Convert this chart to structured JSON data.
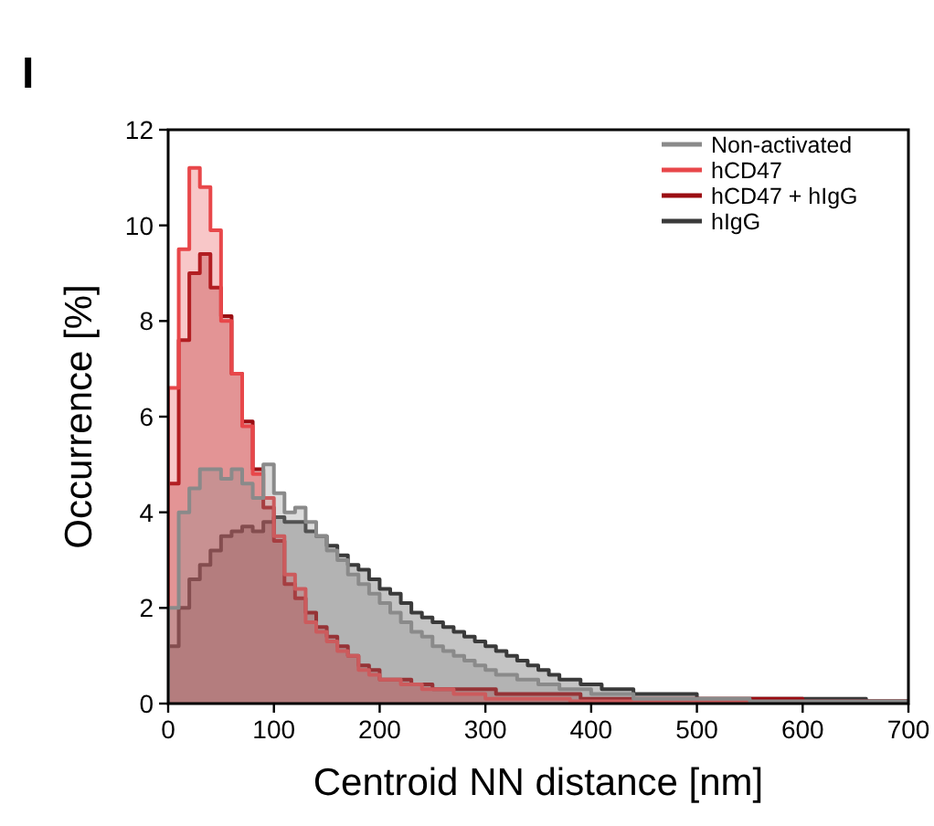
{
  "chart_data": {
    "type": "histogram",
    "title": "I",
    "xlabel": "Centroid NN distance [nm]",
    "ylabel": "Occurrence [%]",
    "bins": [
      0,
      10,
      20,
      30,
      40,
      50,
      60,
      70,
      80,
      90,
      100,
      110,
      120,
      130,
      140,
      150,
      160,
      170,
      180,
      190,
      200,
      210,
      220,
      230,
      240,
      250,
      260,
      270,
      280,
      290,
      300,
      310,
      320,
      330,
      340,
      350,
      360,
      370,
      380,
      390,
      400,
      410,
      420,
      430,
      440,
      450,
      460,
      470,
      480,
      490,
      500,
      510,
      520,
      530,
      540,
      550,
      560,
      570,
      580,
      590,
      600,
      610,
      620,
      630,
      640,
      650,
      660,
      670,
      680,
      690,
      700
    ],
    "series": [
      {
        "name": "Non-activated",
        "color": "#8a8a8a",
        "values": [
          2.0,
          4.0,
          4.5,
          4.9,
          4.9,
          4.7,
          4.9,
          4.6,
          4.3,
          5.0,
          4.4,
          4.0,
          4.1,
          3.8,
          3.5,
          3.2,
          3.0,
          2.7,
          2.5,
          2.3,
          2.1,
          1.9,
          1.7,
          1.5,
          1.4,
          1.2,
          1.1,
          1.0,
          0.9,
          0.8,
          0.7,
          0.6,
          0.6,
          0.5,
          0.5,
          0.4,
          0.4,
          0.3,
          0.3,
          0.3,
          0.2,
          0.2,
          0.2,
          0.2,
          0.1,
          0.1,
          0.1,
          0.1,
          0.1,
          0.1,
          0.1,
          0.1,
          0.1,
          0.1,
          0.1,
          0.05,
          0.05,
          0.05,
          0.05,
          0.05,
          0.05,
          0.05,
          0.05,
          0.05,
          0.05,
          0.05,
          0.05,
          0.05,
          0.05,
          0.05
        ]
      },
      {
        "name": "hCD47",
        "color": "#e8474a",
        "values": [
          6.6,
          9.5,
          11.2,
          10.8,
          9.9,
          8.0,
          6.9,
          5.8,
          4.8,
          4.3,
          3.5,
          2.7,
          2.4,
          1.7,
          1.5,
          1.3,
          1.1,
          1.0,
          0.7,
          0.6,
          0.5,
          0.5,
          0.4,
          0.4,
          0.3,
          0.3,
          0.3,
          0.2,
          0.2,
          0.2,
          0.1,
          0.1,
          0.1,
          0.1,
          0.1,
          0.1,
          0.1,
          0.1,
          0.05,
          0.05,
          0.05,
          0.05,
          0.05,
          0.05,
          0.05,
          0.05,
          0.05,
          0.05,
          0.05,
          0.05,
          0.05,
          0.05,
          0.05,
          0.05,
          0.05,
          0,
          0,
          0,
          0,
          0,
          0,
          0,
          0,
          0,
          0,
          0,
          0,
          0,
          0,
          0
        ]
      },
      {
        "name": "hCD47 + hIgG",
        "color": "#9b0d12",
        "values": [
          4.6,
          7.6,
          9.0,
          9.4,
          8.7,
          8.1,
          6.9,
          5.9,
          4.9,
          4.1,
          3.4,
          2.5,
          2.2,
          1.9,
          1.6,
          1.4,
          1.2,
          1.0,
          0.8,
          0.7,
          0.5,
          0.5,
          0.5,
          0.4,
          0.4,
          0.3,
          0.3,
          0.3,
          0.3,
          0.3,
          0.3,
          0.2,
          0.2,
          0.2,
          0.2,
          0.2,
          0.2,
          0.2,
          0.2,
          0.1,
          0.1,
          0.1,
          0.1,
          0.1,
          0.1,
          0.1,
          0.1,
          0.1,
          0.1,
          0.1,
          0.1,
          0.1,
          0.1,
          0.1,
          0.1,
          0.1,
          0.1,
          0.1,
          0.1,
          0.1,
          0.05,
          0.05,
          0.05,
          0.05,
          0.05,
          0.05,
          0.05,
          0.05,
          0.05,
          0.05
        ]
      },
      {
        "name": "hIgG",
        "color": "#3a3a3a",
        "values": [
          1.2,
          2.0,
          2.6,
          2.9,
          3.2,
          3.5,
          3.6,
          3.7,
          3.6,
          3.8,
          3.9,
          3.8,
          3.8,
          3.6,
          3.5,
          3.3,
          3.1,
          2.9,
          2.8,
          2.6,
          2.4,
          2.3,
          2.1,
          1.9,
          1.8,
          1.7,
          1.6,
          1.5,
          1.4,
          1.3,
          1.2,
          1.1,
          1.0,
          0.9,
          0.8,
          0.7,
          0.6,
          0.5,
          0.5,
          0.4,
          0.4,
          0.3,
          0.3,
          0.3,
          0.2,
          0.2,
          0.2,
          0.2,
          0.2,
          0.2,
          0.1,
          0.1,
          0.1,
          0.1,
          0.1,
          0.1,
          0.1,
          0.1,
          0.1,
          0.1,
          0.1,
          0.1,
          0.1,
          0.1,
          0.1,
          0.1,
          0.05,
          0.05,
          0.05,
          0.05
        ]
      }
    ],
    "xlim": [
      0,
      700
    ],
    "xticks": [
      0,
      100,
      200,
      300,
      400,
      500,
      600,
      700
    ],
    "ylim": [
      0,
      12
    ],
    "yticks": [
      0,
      2,
      4,
      6,
      8,
      10,
      12
    ],
    "legend": "top right",
    "grid": false
  }
}
